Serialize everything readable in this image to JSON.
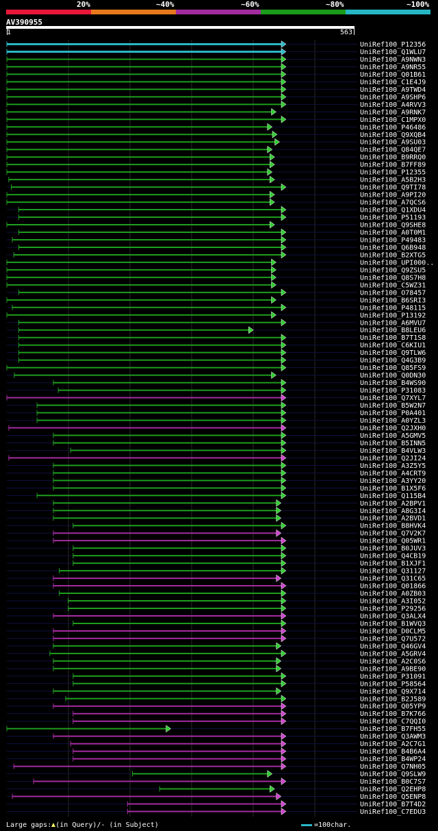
{
  "legend": {
    "labels": [
      "20%",
      "~40%",
      "~60%",
      "~80%",
      "~100%"
    ],
    "colors": [
      "#e8173a",
      "#e8781c",
      "#a22c9e",
      "#1b9b1b",
      "#26b7c4"
    ]
  },
  "query": {
    "name": "AV390955",
    "start": "1",
    "end": "563",
    "length": 563
  },
  "footer": {
    "gaps_text": "Large gaps:",
    "gaps_query": "(in Query)/",
    "gaps_dash": "-",
    "gaps_subject": " (in Subject)",
    "scale_text": "=100char."
  },
  "chart_data": {
    "type": "alignment",
    "query_length": 563,
    "hits": [
      {
        "name": "UniRef100_P12356",
        "start": 1,
        "end": 563,
        "color": "cyan"
      },
      {
        "name": "UniRef100_Q1WLU7",
        "start": 1,
        "end": 563,
        "color": "cyan"
      },
      {
        "name": "UniRef100_A9NWN3",
        "start": 1,
        "end": 563,
        "color": "green"
      },
      {
        "name": "UniRef100_A9NR55",
        "start": 1,
        "end": 563,
        "color": "green"
      },
      {
        "name": "UniRef100_Q01B61",
        "start": 1,
        "end": 563,
        "color": "green"
      },
      {
        "name": "UniRef100_C1E4J9",
        "start": 1,
        "end": 563,
        "color": "green"
      },
      {
        "name": "UniRef100_A9TWD4",
        "start": 1,
        "end": 563,
        "color": "green"
      },
      {
        "name": "UniRef100_A9SHP6",
        "start": 1,
        "end": 563,
        "color": "green"
      },
      {
        "name": "UniRef100_A4RVV3",
        "start": 1,
        "end": 563,
        "color": "green"
      },
      {
        "name": "UniRef100_A9RNK7",
        "start": 1,
        "end": 543,
        "color": "green"
      },
      {
        "name": "UniRef100_C1MPX0",
        "start": 1,
        "end": 563,
        "color": "green"
      },
      {
        "name": "UniRef100_P46486",
        "start": 1,
        "end": 535,
        "color": "green"
      },
      {
        "name": "UniRef100_Q9XQB4",
        "start": 1,
        "end": 545,
        "color": "green"
      },
      {
        "name": "UniRef100_A9SU03",
        "start": 1,
        "end": 550,
        "color": "green"
      },
      {
        "name": "UniRef100_Q84QE7",
        "start": 1,
        "end": 535,
        "color": "green"
      },
      {
        "name": "UniRef100_B9RRQ0",
        "start": 1,
        "end": 540,
        "color": "green"
      },
      {
        "name": "UniRef100_B7FF89",
        "start": 1,
        "end": 540,
        "color": "green"
      },
      {
        "name": "UniRef100_P12355",
        "start": 1,
        "end": 535,
        "color": "green"
      },
      {
        "name": "UniRef100_A5B2H3",
        "start": 5,
        "end": 540,
        "color": "green"
      },
      {
        "name": "UniRef100_Q9TI78",
        "start": 10,
        "end": 563,
        "color": "green"
      },
      {
        "name": "UniRef100_A9PI20",
        "start": 1,
        "end": 540,
        "color": "green"
      },
      {
        "name": "UniRef100_A7QCS6",
        "start": 1,
        "end": 540,
        "color": "green"
      },
      {
        "name": "UniRef100_Q1XDU4",
        "start": 25,
        "end": 563,
        "color": "green"
      },
      {
        "name": "UniRef100_P51193",
        "start": 25,
        "end": 563,
        "color": "green"
      },
      {
        "name": "UniRef100_Q9SHE8",
        "start": 1,
        "end": 540,
        "color": "green"
      },
      {
        "name": "UniRef100_A0T0M1",
        "start": 25,
        "end": 563,
        "color": "green"
      },
      {
        "name": "UniRef100_P49483",
        "start": 12,
        "end": 563,
        "color": "green"
      },
      {
        "name": "UniRef100_Q6B948",
        "start": 25,
        "end": 563,
        "color": "green"
      },
      {
        "name": "UniRef100_B2XTG5",
        "start": 15,
        "end": 563,
        "color": "green"
      },
      {
        "name": "UniRef100_UPI000..",
        "start": 1,
        "end": 543,
        "color": "green"
      },
      {
        "name": "UniRef100_Q9ZSU5",
        "start": 1,
        "end": 543,
        "color": "green"
      },
      {
        "name": "UniRef100_Q8S7H8",
        "start": 1,
        "end": 543,
        "color": "green"
      },
      {
        "name": "UniRef100_C5WZ31",
        "start": 1,
        "end": 543,
        "color": "green"
      },
      {
        "name": "UniRef100_O78457",
        "start": 25,
        "end": 563,
        "color": "green"
      },
      {
        "name": "UniRef100_B6SRI3",
        "start": 1,
        "end": 543,
        "color": "green"
      },
      {
        "name": "UniRef100_P48115",
        "start": 12,
        "end": 563,
        "color": "green"
      },
      {
        "name": "UniRef100_P13192",
        "start": 1,
        "end": 543,
        "color": "green"
      },
      {
        "name": "UniRef100_A6MVU7",
        "start": 25,
        "end": 563,
        "color": "green"
      },
      {
        "name": "UniRef100_B8LEU6",
        "start": 25,
        "end": 497,
        "color": "green"
      },
      {
        "name": "UniRef100_B7T1S8",
        "start": 25,
        "end": 563,
        "color": "green"
      },
      {
        "name": "UniRef100_C6KIU1",
        "start": 25,
        "end": 563,
        "color": "green"
      },
      {
        "name": "UniRef100_Q9TLW6",
        "start": 25,
        "end": 563,
        "color": "green"
      },
      {
        "name": "UniRef100_Q4G3B9",
        "start": 25,
        "end": 563,
        "color": "green"
      },
      {
        "name": "UniRef100_Q85FS9",
        "start": 1,
        "end": 563,
        "color": "green"
      },
      {
        "name": "UniRef100_Q0DN30",
        "start": 16,
        "end": 543,
        "color": "green"
      },
      {
        "name": "UniRef100_B4WS90",
        "start": 95,
        "end": 563,
        "color": "green"
      },
      {
        "name": "UniRef100_P31083",
        "start": 105,
        "end": 563,
        "color": "green"
      },
      {
        "name": "UniRef100_Q7XYL7",
        "start": 1,
        "end": 563,
        "color": "magenta"
      },
      {
        "name": "UniRef100_B5W2N7",
        "start": 62,
        "end": 563,
        "color": "green"
      },
      {
        "name": "UniRef100_P0A401",
        "start": 62,
        "end": 563,
        "color": "green"
      },
      {
        "name": "UniRef100_A0YZL3",
        "start": 62,
        "end": 563,
        "color": "green"
      },
      {
        "name": "UniRef100_Q2JXH0",
        "start": 5,
        "end": 563,
        "color": "magenta"
      },
      {
        "name": "UniRef100_A5GMV5",
        "start": 95,
        "end": 563,
        "color": "green"
      },
      {
        "name": "UniRef100_B5INN5",
        "start": 95,
        "end": 563,
        "color": "green"
      },
      {
        "name": "UniRef100_B4VLW3",
        "start": 130,
        "end": 563,
        "color": "green"
      },
      {
        "name": "UniRef100_Q2JI24",
        "start": 5,
        "end": 563,
        "color": "magenta"
      },
      {
        "name": "UniRef100_A3Z5Y5",
        "start": 95,
        "end": 563,
        "color": "green"
      },
      {
        "name": "UniRef100_A4CRT9",
        "start": 95,
        "end": 563,
        "color": "green"
      },
      {
        "name": "UniRef100_A3YY20",
        "start": 95,
        "end": 563,
        "color": "green"
      },
      {
        "name": "UniRef100_B1X5F6",
        "start": 95,
        "end": 563,
        "color": "green"
      },
      {
        "name": "UniRef100_Q115B4",
        "start": 62,
        "end": 563,
        "color": "green"
      },
      {
        "name": "UniRef100_A2BPV1",
        "start": 95,
        "end": 553,
        "color": "green"
      },
      {
        "name": "UniRef100_A8G3I4",
        "start": 95,
        "end": 553,
        "color": "green"
      },
      {
        "name": "UniRef100_A2BVD1",
        "start": 95,
        "end": 553,
        "color": "green"
      },
      {
        "name": "UniRef100_B8HVK4",
        "start": 135,
        "end": 563,
        "color": "green"
      },
      {
        "name": "UniRef100_Q7V2K7",
        "start": 95,
        "end": 553,
        "color": "magenta"
      },
      {
        "name": "UniRef100_Q05WR1",
        "start": 95,
        "end": 563,
        "color": "magenta"
      },
      {
        "name": "UniRef100_B0JUV3",
        "start": 135,
        "end": 563,
        "color": "green"
      },
      {
        "name": "UniRef100_Q4CB19",
        "start": 135,
        "end": 563,
        "color": "green"
      },
      {
        "name": "UniRef100_B1XJF1",
        "start": 135,
        "end": 563,
        "color": "green"
      },
      {
        "name": "UniRef100_Q31127",
        "start": 107,
        "end": 563,
        "color": "green"
      },
      {
        "name": "UniRef100_Q31C65",
        "start": 95,
        "end": 553,
        "color": "magenta"
      },
      {
        "name": "UniRef100_Q01866",
        "start": 95,
        "end": 563,
        "color": "magenta"
      },
      {
        "name": "UniRef100_A0ZB03",
        "start": 107,
        "end": 563,
        "color": "green"
      },
      {
        "name": "UniRef100_A3I052",
        "start": 125,
        "end": 563,
        "color": "green"
      },
      {
        "name": "UniRef100_P29256",
        "start": 125,
        "end": 563,
        "color": "green"
      },
      {
        "name": "UniRef100_Q3ALX4",
        "start": 95,
        "end": 563,
        "color": "magenta"
      },
      {
        "name": "UniRef100_B1WVQ3",
        "start": 135,
        "end": 563,
        "color": "green"
      },
      {
        "name": "UniRef100_D0CLM5",
        "start": 95,
        "end": 563,
        "color": "magenta"
      },
      {
        "name": "UniRef100_Q7U572",
        "start": 95,
        "end": 563,
        "color": "magenta"
      },
      {
        "name": "UniRef100_Q46GV4",
        "start": 95,
        "end": 553,
        "color": "green"
      },
      {
        "name": "UniRef100_A5GRV4",
        "start": 88,
        "end": 563,
        "color": "green"
      },
      {
        "name": "UniRef100_A2C0S6",
        "start": 95,
        "end": 553,
        "color": "green"
      },
      {
        "name": "UniRef100_A9BE90",
        "start": 95,
        "end": 553,
        "color": "green"
      },
      {
        "name": "UniRef100_P31091",
        "start": 135,
        "end": 563,
        "color": "green"
      },
      {
        "name": "UniRef100_P58564",
        "start": 135,
        "end": 563,
        "color": "green"
      },
      {
        "name": "UniRef100_Q9X714",
        "start": 95,
        "end": 553,
        "color": "green"
      },
      {
        "name": "UniRef100_B2J589",
        "start": 120,
        "end": 563,
        "color": "green"
      },
      {
        "name": "UniRef100_Q05YP9",
        "start": 95,
        "end": 563,
        "color": "magenta"
      },
      {
        "name": "UniRef100_B7K766",
        "start": 135,
        "end": 563,
        "color": "magenta"
      },
      {
        "name": "UniRef100_C7QQI0",
        "start": 135,
        "end": 563,
        "color": "magenta"
      },
      {
        "name": "UniRef100_B7FH55",
        "start": 1,
        "end": 330,
        "color": "green"
      },
      {
        "name": "UniRef100_Q3AWM3",
        "start": 95,
        "end": 563,
        "color": "magenta"
      },
      {
        "name": "UniRef100_A2C7G1",
        "start": 130,
        "end": 563,
        "color": "magenta"
      },
      {
        "name": "UniRef100_B4B6A4",
        "start": 135,
        "end": 563,
        "color": "magenta"
      },
      {
        "name": "UniRef100_B4WP24",
        "start": 135,
        "end": 563,
        "color": "magenta"
      },
      {
        "name": "UniRef100_Q7NH05",
        "start": 15,
        "end": 563,
        "color": "magenta"
      },
      {
        "name": "UniRef100_Q9SLW9",
        "start": 255,
        "end": 535,
        "color": "green"
      },
      {
        "name": "UniRef100_B0C7S7",
        "start": 55,
        "end": 563,
        "color": "magenta"
      },
      {
        "name": "UniRef100_Q2EHP8",
        "start": 310,
        "end": 540,
        "color": "green"
      },
      {
        "name": "UniRef100_Q5ENP8",
        "start": 12,
        "end": 553,
        "color": "magenta"
      },
      {
        "name": "UniRef100_B7T4D2",
        "start": 245,
        "end": 563,
        "color": "magenta"
      },
      {
        "name": "UniRef100_C7EDU3",
        "start": 245,
        "end": 563,
        "color": "magenta"
      }
    ]
  }
}
